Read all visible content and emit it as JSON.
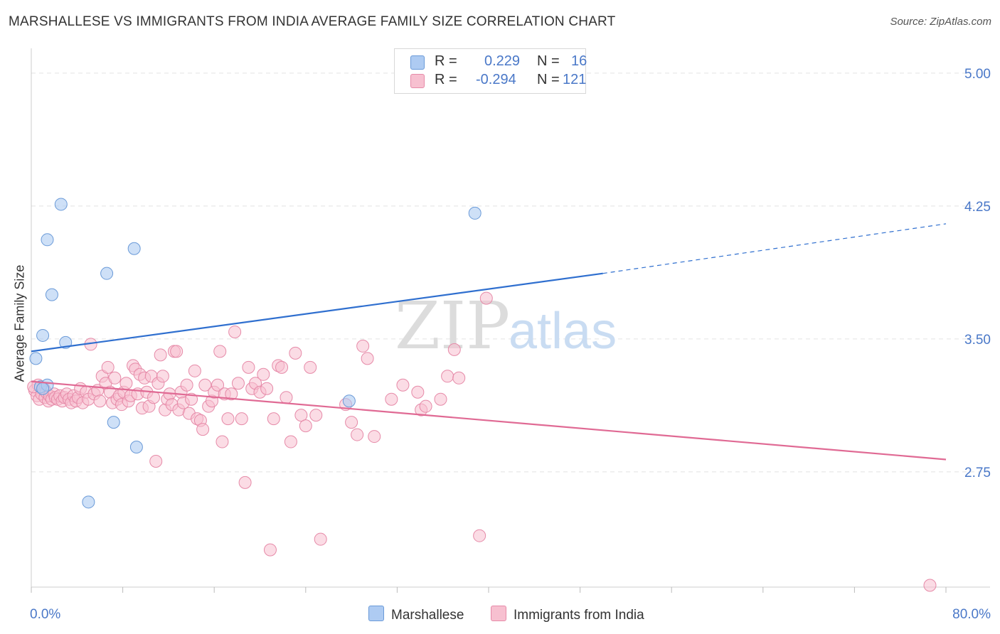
{
  "header": {
    "title": "MARSHALLESE VS IMMIGRANTS FROM INDIA AVERAGE FAMILY SIZE CORRELATION CHART",
    "source": "Source: ZipAtlas.com"
  },
  "legend_top": {
    "rows": [
      {
        "r_label": "R =",
        "r_value": "0.229",
        "n_label": "N =",
        "n_value": "16"
      },
      {
        "r_label": "R =",
        "r_value": "-0.294",
        "n_label": "N =",
        "n_value": "121"
      }
    ]
  },
  "legend_bottom": {
    "items": [
      "Marshallese",
      "Immigrants from India"
    ]
  },
  "colors": {
    "blue_fill": "#aecbf2",
    "blue_stroke": "#6a9ad8",
    "blue_line": "#2f6fcf",
    "pink_fill": "#f7c0d0",
    "pink_stroke": "#e68aa8",
    "pink_line": "#e06a94",
    "axis_text": "#4a78c8",
    "grid": "#e2e2e2"
  },
  "chart_data": {
    "type": "scatter",
    "title": "MARSHALLESE VS IMMIGRANTS FROM INDIA AVERAGE FAMILY SIZE CORRELATION CHART",
    "xlabel": "",
    "ylabel": "Average Family Size",
    "xlim": [
      0,
      80
    ],
    "ylim": [
      2.1,
      5.1
    ],
    "x_tick_labels": [
      "0.0%",
      "80.0%"
    ],
    "y_ticks": [
      2.75,
      3.5,
      4.25,
      5.0
    ],
    "y_tick_labels": [
      "2.75",
      "3.50",
      "4.25",
      "5.00"
    ],
    "watermark": {
      "part1": "ZIP",
      "part2": "atlas"
    },
    "series": [
      {
        "name": "Marshallese",
        "color": "#aecbf2",
        "r": 0.229,
        "n": 16,
        "trend": {
          "x0": 0,
          "y0": 3.43,
          "x1": 50,
          "y1": 3.87,
          "dash_to_x": 80,
          "dash_to_y": 4.15
        },
        "points": [
          [
            0.4,
            3.39
          ],
          [
            0.8,
            3.23
          ],
          [
            1.0,
            3.52
          ],
          [
            1.4,
            3.24
          ],
          [
            1.4,
            4.06
          ],
          [
            1.8,
            3.75
          ],
          [
            2.6,
            4.26
          ],
          [
            3.0,
            3.48
          ],
          [
            6.6,
            3.87
          ],
          [
            7.2,
            3.03
          ],
          [
            9.0,
            4.01
          ],
          [
            9.2,
            2.89
          ],
          [
            5.0,
            2.58
          ],
          [
            38.8,
            4.21
          ],
          [
            27.8,
            3.15
          ],
          [
            1.0,
            3.22
          ]
        ]
      },
      {
        "name": "Immigrants from India",
        "color": "#f7c0d0",
        "r": -0.294,
        "n": 121,
        "trend": {
          "x0": 0,
          "y0": 3.26,
          "x1": 80,
          "y1": 2.82
        },
        "points": [
          [
            0.3,
            3.21
          ],
          [
            0.5,
            3.18
          ],
          [
            0.6,
            3.24
          ],
          [
            0.7,
            3.16
          ],
          [
            0.9,
            3.19
          ],
          [
            1.1,
            3.22
          ],
          [
            1.2,
            3.17
          ],
          [
            1.3,
            3.2
          ],
          [
            1.5,
            3.15
          ],
          [
            1.6,
            3.18
          ],
          [
            1.8,
            3.16
          ],
          [
            2.0,
            3.19
          ],
          [
            2.1,
            3.17
          ],
          [
            2.3,
            3.16
          ],
          [
            2.5,
            3.18
          ],
          [
            2.7,
            3.15
          ],
          [
            2.9,
            3.17
          ],
          [
            3.1,
            3.19
          ],
          [
            3.3,
            3.16
          ],
          [
            3.5,
            3.14
          ],
          [
            3.7,
            3.18
          ],
          [
            3.9,
            3.15
          ],
          [
            4.1,
            3.17
          ],
          [
            4.3,
            3.22
          ],
          [
            4.5,
            3.14
          ],
          [
            4.8,
            3.2
          ],
          [
            5.0,
            3.16
          ],
          [
            5.2,
            3.47
          ],
          [
            5.5,
            3.19
          ],
          [
            5.8,
            3.21
          ],
          [
            6.0,
            3.15
          ],
          [
            6.2,
            3.29
          ],
          [
            6.5,
            3.25
          ],
          [
            6.7,
            3.34
          ],
          [
            6.9,
            3.2
          ],
          [
            7.1,
            3.14
          ],
          [
            7.3,
            3.28
          ],
          [
            7.5,
            3.16
          ],
          [
            7.7,
            3.18
          ],
          [
            7.9,
            3.13
          ],
          [
            8.1,
            3.2
          ],
          [
            8.3,
            3.25
          ],
          [
            8.5,
            3.15
          ],
          [
            8.7,
            3.18
          ],
          [
            8.9,
            3.35
          ],
          [
            9.1,
            3.33
          ],
          [
            9.3,
            3.19
          ],
          [
            9.5,
            3.3
          ],
          [
            9.7,
            3.11
          ],
          [
            9.9,
            3.28
          ],
          [
            10.1,
            3.2
          ],
          [
            10.3,
            3.12
          ],
          [
            10.5,
            3.29
          ],
          [
            10.7,
            3.17
          ],
          [
            10.9,
            2.81
          ],
          [
            11.1,
            3.25
          ],
          [
            11.3,
            3.41
          ],
          [
            11.5,
            3.29
          ],
          [
            11.7,
            3.1
          ],
          [
            11.9,
            3.16
          ],
          [
            12.1,
            3.19
          ],
          [
            12.3,
            3.13
          ],
          [
            12.5,
            3.43
          ],
          [
            12.7,
            3.43
          ],
          [
            12.9,
            3.1
          ],
          [
            13.1,
            3.2
          ],
          [
            13.3,
            3.14
          ],
          [
            13.6,
            3.24
          ],
          [
            13.8,
            3.08
          ],
          [
            14.0,
            3.16
          ],
          [
            14.3,
            3.32
          ],
          [
            14.5,
            3.05
          ],
          [
            14.8,
            3.04
          ],
          [
            15.0,
            2.99
          ],
          [
            15.2,
            3.24
          ],
          [
            15.5,
            3.12
          ],
          [
            15.8,
            3.15
          ],
          [
            16.0,
            3.2
          ],
          [
            16.3,
            3.24
          ],
          [
            16.5,
            3.43
          ],
          [
            16.7,
            2.92
          ],
          [
            16.9,
            3.19
          ],
          [
            17.2,
            3.05
          ],
          [
            17.5,
            3.19
          ],
          [
            17.8,
            3.54
          ],
          [
            18.1,
            3.25
          ],
          [
            18.4,
            3.05
          ],
          [
            18.7,
            2.69
          ],
          [
            19.0,
            3.34
          ],
          [
            19.3,
            3.22
          ],
          [
            19.6,
            3.25
          ],
          [
            20.0,
            3.2
          ],
          [
            20.3,
            3.3
          ],
          [
            20.6,
            3.22
          ],
          [
            20.9,
            2.31
          ],
          [
            21.2,
            3.05
          ],
          [
            21.6,
            3.35
          ],
          [
            21.9,
            3.34
          ],
          [
            22.3,
            3.17
          ],
          [
            22.7,
            2.92
          ],
          [
            23.1,
            3.42
          ],
          [
            23.6,
            3.07
          ],
          [
            24.0,
            3.01
          ],
          [
            24.4,
            3.34
          ],
          [
            24.9,
            3.07
          ],
          [
            25.3,
            2.37
          ],
          [
            27.5,
            3.13
          ],
          [
            28.0,
            3.03
          ],
          [
            28.5,
            2.96
          ],
          [
            29.0,
            3.46
          ],
          [
            29.4,
            3.39
          ],
          [
            30.0,
            2.95
          ],
          [
            31.5,
            3.16
          ],
          [
            32.5,
            3.24
          ],
          [
            33.8,
            3.2
          ],
          [
            34.1,
            3.1
          ],
          [
            34.5,
            3.12
          ],
          [
            35.8,
            3.16
          ],
          [
            36.4,
            3.29
          ],
          [
            37.0,
            3.44
          ],
          [
            37.4,
            3.28
          ],
          [
            39.8,
            3.73
          ],
          [
            39.2,
            2.39
          ],
          [
            78.6,
            2.11
          ],
          [
            0.2,
            3.23
          ]
        ]
      }
    ]
  }
}
